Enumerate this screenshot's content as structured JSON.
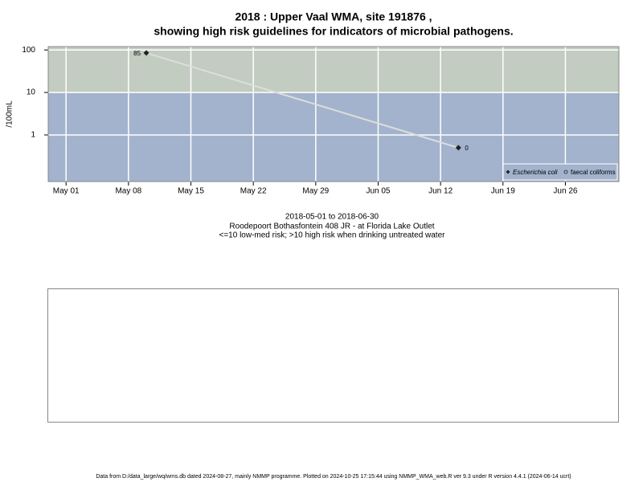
{
  "chart_data": {
    "type": "line",
    "title": [
      "2018 : Upper Vaal WMA, site 191876 ,",
      "showing high risk guidelines for indicators of microbial pathogens."
    ],
    "y_label": "/100mL",
    "log_scale": true,
    "grid": true,
    "legend_position": "bottom-right",
    "guideline": 10,
    "band_colors": {
      "high": "#c2ccc0",
      "low": "#a3b3cd"
    },
    "xlim": [
      "2018-04-29",
      "2018-07-02"
    ],
    "xticks": [
      {
        "value": "2018-05-01",
        "label": "May 01"
      },
      {
        "value": "2018-05-08",
        "label": "May 08"
      },
      {
        "value": "2018-05-15",
        "label": "May 15"
      },
      {
        "value": "2018-05-22",
        "label": "May 22"
      },
      {
        "value": "2018-05-29",
        "label": "May 29"
      },
      {
        "value": "2018-06-05",
        "label": "Jun 05"
      },
      {
        "value": "2018-06-12",
        "label": "Jun 12"
      },
      {
        "value": "2018-06-19",
        "label": "Jun 19"
      },
      {
        "value": "2018-06-26",
        "label": "Jun 26"
      }
    ],
    "ylim": [
      0.08,
      120
    ],
    "yticks": [
      1,
      10,
      100
    ],
    "x": [
      "2018-05-10",
      "2018-06-14"
    ],
    "series": [
      {
        "name": "Escherichia coli",
        "color": "#222222",
        "line_color": "#dddddd",
        "values": [
          85,
          0.5
        ],
        "value_labels": [
          "85",
          "0"
        ]
      },
      {
        "name": "faecal coliforms",
        "color": "#222222",
        "values": [
          null,
          null
        ]
      }
    ],
    "notes": [
      "2018-05-01 to 2018-06-30",
      "Roodepoort Bothasfontein 408 JR - at Florida Lake Outlet",
      "<=10 low-med risk; >10 high risk when drinking untreated water"
    ],
    "footer": "Data from D:/data_large/wq/wms.db dated 2024-08-27, mainly NMMP programme. Plotted on 2024-10-25 17:15:44 using NMMP_WMA_web.R ver 9.3 under R version 4.4.1 (2024-06-14 ucrt)"
  }
}
